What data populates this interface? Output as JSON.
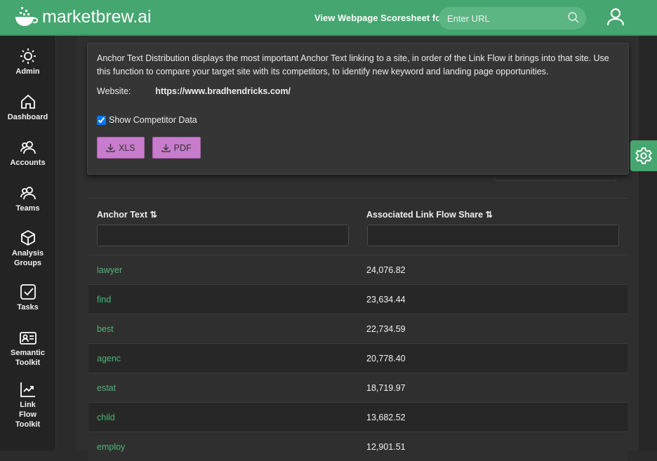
{
  "header": {
    "brand": "marketbrew.ai",
    "scoresheet_label": "View Webpage Scoresheet for:",
    "url_placeholder": "Enter URL"
  },
  "sidebar": {
    "items": [
      {
        "label": "Admin",
        "icon": "sun-icon"
      },
      {
        "label": "Dashboard",
        "icon": "home-icon"
      },
      {
        "label": "Accounts",
        "icon": "users-icon"
      },
      {
        "label": "Teams",
        "icon": "users-icon"
      },
      {
        "label": "Analysis Groups",
        "icon": "cube-icon"
      },
      {
        "label": "Tasks",
        "icon": "checkbox-icon"
      },
      {
        "label": "Semantic Toolkit",
        "icon": "id-card-icon"
      },
      {
        "label": "Link Flow Toolkit",
        "icon": "chart-line-icon"
      }
    ]
  },
  "info": {
    "description": "Anchor Text Distribution displays the most important Anchor Text linking to a site, in order of the Link Flow it brings into that site. Use this function to compare your target site with its competitors, to identify new keyword and landing page opportunities.",
    "website_label": "Website:",
    "website": "https://www.bradhendricks.com/",
    "show_competitor_label": "Show Competitor Data",
    "show_competitor_checked": true,
    "xls_label": "XLS",
    "pdf_label": "PDF"
  },
  "table": {
    "headers": [
      "Anchor Text",
      "Associated Link Flow Share"
    ],
    "rows": [
      [
        "lawyer",
        "24,076.82"
      ],
      [
        "find",
        "23,634.44"
      ],
      [
        "best",
        "22,734.59"
      ],
      [
        "agenc",
        "20,778.40"
      ],
      [
        "estat",
        "18,719.97"
      ],
      [
        "child",
        "13,682.52"
      ],
      [
        "employ",
        "12,901.51"
      ]
    ]
  },
  "colors": {
    "brand": "#45a76f",
    "link": "#4fb576",
    "button": "#c87ccc"
  }
}
